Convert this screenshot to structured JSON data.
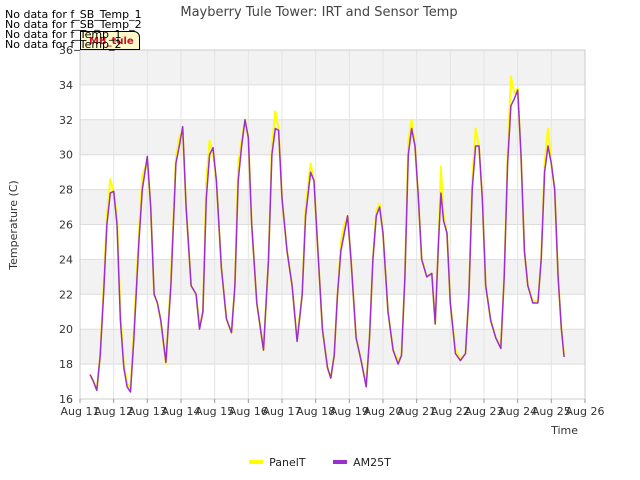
{
  "nodata_messages": [
    "No data for f_SB_Temp_1",
    "No data for f_SB_Temp_2",
    "No data for f_Temp_1",
    "No data for f_Temp_2"
  ],
  "tooltip_label": "MB_tule",
  "chart_data": {
    "type": "line",
    "title": "Mayberry Tule Tower: IRT and Sensor Temp",
    "xlabel": "Time",
    "ylabel": "Temperature (C)",
    "ylim": [
      16,
      36
    ],
    "xlim": [
      11,
      26
    ],
    "x_tick_values": [
      11,
      12,
      13,
      14,
      15,
      16,
      17,
      18,
      19,
      20,
      21,
      22,
      23,
      24,
      25,
      26
    ],
    "x_tick_labels": [
      "Aug 11",
      "Aug 12",
      "Aug 13",
      "Aug 14",
      "Aug 15",
      "Aug 16",
      "Aug 17",
      "Aug 18",
      "Aug 19",
      "Aug 20",
      "Aug 21",
      "Aug 22",
      "Aug 23",
      "Aug 24",
      "Aug 25",
      "Aug 26"
    ],
    "y_tick_values": [
      16,
      18,
      20,
      22,
      24,
      26,
      28,
      30,
      32,
      34,
      36
    ],
    "y_tick_labels": [
      "16",
      "18",
      "20",
      "22",
      "24",
      "26",
      "28",
      "30",
      "32",
      "34",
      "36"
    ],
    "series": [
      {
        "name": "PanelT",
        "color": "#ffff00",
        "points": [
          [
            11.3,
            17.4
          ],
          [
            11.4,
            17.0
          ],
          [
            11.5,
            16.5
          ],
          [
            11.6,
            18.5
          ],
          [
            11.7,
            22.5
          ],
          [
            11.8,
            26.5
          ],
          [
            11.9,
            28.6
          ],
          [
            12.0,
            27.8
          ],
          [
            12.1,
            26.5
          ],
          [
            12.2,
            21.0
          ],
          [
            12.3,
            18.0
          ],
          [
            12.4,
            16.9
          ],
          [
            12.5,
            16.6
          ],
          [
            12.6,
            20.0
          ],
          [
            12.75,
            25.5
          ],
          [
            12.85,
            28.8
          ],
          [
            13.0,
            29.6
          ],
          [
            13.1,
            27.0
          ],
          [
            13.2,
            22.0
          ],
          [
            13.3,
            21.5
          ],
          [
            13.4,
            20.5
          ],
          [
            13.55,
            18.0
          ],
          [
            13.7,
            23.0
          ],
          [
            13.85,
            29.8
          ],
          [
            13.95,
            31.0
          ],
          [
            14.05,
            31.4
          ],
          [
            14.15,
            27.0
          ],
          [
            14.3,
            22.5
          ],
          [
            14.45,
            22.0
          ],
          [
            14.55,
            20.2
          ],
          [
            14.65,
            21.0
          ],
          [
            14.75,
            28.5
          ],
          [
            14.85,
            30.8
          ],
          [
            14.95,
            30.0
          ],
          [
            15.05,
            28.5
          ],
          [
            15.2,
            23.5
          ],
          [
            15.35,
            20.6
          ],
          [
            15.5,
            19.8
          ],
          [
            15.6,
            22.5
          ],
          [
            15.7,
            29.5
          ],
          [
            15.8,
            30.8
          ],
          [
            15.9,
            32.0
          ],
          [
            16.0,
            31.0
          ],
          [
            16.1,
            26.0
          ],
          [
            16.25,
            21.5
          ],
          [
            16.45,
            18.8
          ],
          [
            16.6,
            24.0
          ],
          [
            16.7,
            30.5
          ],
          [
            16.8,
            32.5
          ],
          [
            16.9,
            31.5
          ],
          [
            17.0,
            27.5
          ],
          [
            17.15,
            24.5
          ],
          [
            17.3,
            22.5
          ],
          [
            17.45,
            19.4
          ],
          [
            17.6,
            22.0
          ],
          [
            17.7,
            27.0
          ],
          [
            17.85,
            29.5
          ],
          [
            17.95,
            28.5
          ],
          [
            18.05,
            25.0
          ],
          [
            18.2,
            20.0
          ],
          [
            18.35,
            17.8
          ],
          [
            18.45,
            17.2
          ],
          [
            18.55,
            18.5
          ],
          [
            18.65,
            22.0
          ],
          [
            18.75,
            25.0
          ],
          [
            18.85,
            26.0
          ],
          [
            18.95,
            26.5
          ],
          [
            19.05,
            24.0
          ],
          [
            19.2,
            19.5
          ],
          [
            19.35,
            18.2
          ],
          [
            19.5,
            16.8
          ],
          [
            19.6,
            19.5
          ],
          [
            19.7,
            24.0
          ],
          [
            19.8,
            26.8
          ],
          [
            19.9,
            27.2
          ],
          [
            20.0,
            25.5
          ],
          [
            20.15,
            21.0
          ],
          [
            20.3,
            18.8
          ],
          [
            20.45,
            18.2
          ],
          [
            20.55,
            18.5
          ],
          [
            20.65,
            23.0
          ],
          [
            20.75,
            30.8
          ],
          [
            20.85,
            32.0
          ],
          [
            20.95,
            30.5
          ],
          [
            21.05,
            27.5
          ],
          [
            21.15,
            24.0
          ],
          [
            21.3,
            23.0
          ],
          [
            21.45,
            23.2
          ],
          [
            21.55,
            20.3
          ],
          [
            21.65,
            25.0
          ],
          [
            21.72,
            29.3
          ],
          [
            21.8,
            26.5
          ],
          [
            21.9,
            25.5
          ],
          [
            22.0,
            21.5
          ],
          [
            22.15,
            18.8
          ],
          [
            22.3,
            18.3
          ],
          [
            22.45,
            18.6
          ],
          [
            22.55,
            22.0
          ],
          [
            22.65,
            28.5
          ],
          [
            22.75,
            31.5
          ],
          [
            22.85,
            30.5
          ],
          [
            22.95,
            27.5
          ],
          [
            23.05,
            22.5
          ],
          [
            23.2,
            20.5
          ],
          [
            23.35,
            19.5
          ],
          [
            23.5,
            19.0
          ],
          [
            23.6,
            23.0
          ],
          [
            23.7,
            30.0
          ],
          [
            23.8,
            34.5
          ],
          [
            23.9,
            33.5
          ],
          [
            24.0,
            33.8
          ],
          [
            24.1,
            30.0
          ],
          [
            24.2,
            24.5
          ],
          [
            24.3,
            22.5
          ],
          [
            24.45,
            21.6
          ],
          [
            24.6,
            21.6
          ],
          [
            24.7,
            24.0
          ],
          [
            24.8,
            29.5
          ],
          [
            24.9,
            31.5
          ],
          [
            25.0,
            29.5
          ],
          [
            25.1,
            28.0
          ],
          [
            25.2,
            23.0
          ],
          [
            25.3,
            20.0
          ],
          [
            25.38,
            18.5
          ]
        ]
      },
      {
        "name": "AM25T",
        "color": "#9a2ed0",
        "points": [
          [
            11.3,
            17.4
          ],
          [
            11.4,
            17.0
          ],
          [
            11.5,
            16.5
          ],
          [
            11.6,
            18.5
          ],
          [
            11.7,
            22.0
          ],
          [
            11.8,
            26.0
          ],
          [
            11.9,
            27.8
          ],
          [
            12.0,
            27.9
          ],
          [
            12.1,
            26.0
          ],
          [
            12.2,
            20.5
          ],
          [
            12.3,
            17.8
          ],
          [
            12.4,
            16.7
          ],
          [
            12.5,
            16.4
          ],
          [
            12.6,
            19.5
          ],
          [
            12.75,
            25.0
          ],
          [
            12.85,
            28.0
          ],
          [
            13.0,
            29.9
          ],
          [
            13.1,
            27.0
          ],
          [
            13.2,
            22.0
          ],
          [
            13.3,
            21.5
          ],
          [
            13.4,
            20.5
          ],
          [
            13.55,
            18.1
          ],
          [
            13.7,
            22.5
          ],
          [
            13.85,
            29.5
          ],
          [
            13.95,
            30.5
          ],
          [
            14.05,
            31.6
          ],
          [
            14.15,
            27.0
          ],
          [
            14.3,
            22.5
          ],
          [
            14.45,
            22.0
          ],
          [
            14.55,
            20.0
          ],
          [
            14.65,
            21.0
          ],
          [
            14.75,
            27.5
          ],
          [
            14.85,
            30.0
          ],
          [
            14.95,
            30.4
          ],
          [
            15.05,
            28.5
          ],
          [
            15.2,
            23.5
          ],
          [
            15.35,
            20.6
          ],
          [
            15.5,
            19.8
          ],
          [
            15.6,
            22.5
          ],
          [
            15.7,
            28.5
          ],
          [
            15.8,
            30.5
          ],
          [
            15.9,
            32.0
          ],
          [
            16.0,
            31.0
          ],
          [
            16.1,
            26.0
          ],
          [
            16.25,
            21.5
          ],
          [
            16.45,
            18.8
          ],
          [
            16.6,
            24.0
          ],
          [
            16.7,
            30.0
          ],
          [
            16.8,
            31.5
          ],
          [
            16.9,
            31.4
          ],
          [
            17.0,
            27.5
          ],
          [
            17.15,
            24.5
          ],
          [
            17.3,
            22.5
          ],
          [
            17.45,
            19.3
          ],
          [
            17.6,
            22.0
          ],
          [
            17.7,
            26.5
          ],
          [
            17.85,
            29.0
          ],
          [
            17.95,
            28.5
          ],
          [
            18.05,
            25.0
          ],
          [
            18.2,
            20.0
          ],
          [
            18.35,
            17.8
          ],
          [
            18.45,
            17.2
          ],
          [
            18.55,
            18.5
          ],
          [
            18.65,
            22.0
          ],
          [
            18.75,
            24.5
          ],
          [
            18.85,
            25.5
          ],
          [
            18.95,
            26.5
          ],
          [
            19.05,
            24.0
          ],
          [
            19.2,
            19.5
          ],
          [
            19.35,
            18.2
          ],
          [
            19.5,
            16.7
          ],
          [
            19.6,
            19.5
          ],
          [
            19.7,
            24.0
          ],
          [
            19.8,
            26.5
          ],
          [
            19.9,
            27.0
          ],
          [
            20.0,
            25.5
          ],
          [
            20.15,
            21.0
          ],
          [
            20.3,
            18.8
          ],
          [
            20.45,
            18.0
          ],
          [
            20.55,
            18.5
          ],
          [
            20.65,
            23.0
          ],
          [
            20.75,
            30.0
          ],
          [
            20.85,
            31.5
          ],
          [
            20.95,
            30.5
          ],
          [
            21.05,
            27.5
          ],
          [
            21.15,
            24.0
          ],
          [
            21.3,
            23.0
          ],
          [
            21.45,
            23.2
          ],
          [
            21.55,
            20.3
          ],
          [
            21.65,
            25.0
          ],
          [
            21.72,
            27.8
          ],
          [
            21.8,
            26.2
          ],
          [
            21.9,
            25.5
          ],
          [
            22.0,
            21.5
          ],
          [
            22.15,
            18.6
          ],
          [
            22.3,
            18.2
          ],
          [
            22.45,
            18.6
          ],
          [
            22.55,
            22.0
          ],
          [
            22.65,
            28.0
          ],
          [
            22.75,
            30.5
          ],
          [
            22.85,
            30.5
          ],
          [
            22.95,
            27.5
          ],
          [
            23.05,
            22.5
          ],
          [
            23.2,
            20.5
          ],
          [
            23.35,
            19.5
          ],
          [
            23.5,
            18.9
          ],
          [
            23.6,
            23.0
          ],
          [
            23.7,
            29.5
          ],
          [
            23.8,
            32.8
          ],
          [
            23.9,
            33.2
          ],
          [
            24.0,
            33.7
          ],
          [
            24.1,
            30.0
          ],
          [
            24.2,
            24.5
          ],
          [
            24.3,
            22.5
          ],
          [
            24.45,
            21.5
          ],
          [
            24.6,
            21.5
          ],
          [
            24.7,
            24.0
          ],
          [
            24.8,
            29.0
          ],
          [
            24.9,
            30.5
          ],
          [
            25.0,
            29.5
          ],
          [
            25.1,
            28.0
          ],
          [
            25.2,
            23.0
          ],
          [
            25.3,
            20.0
          ],
          [
            25.38,
            18.4
          ]
        ]
      }
    ]
  }
}
